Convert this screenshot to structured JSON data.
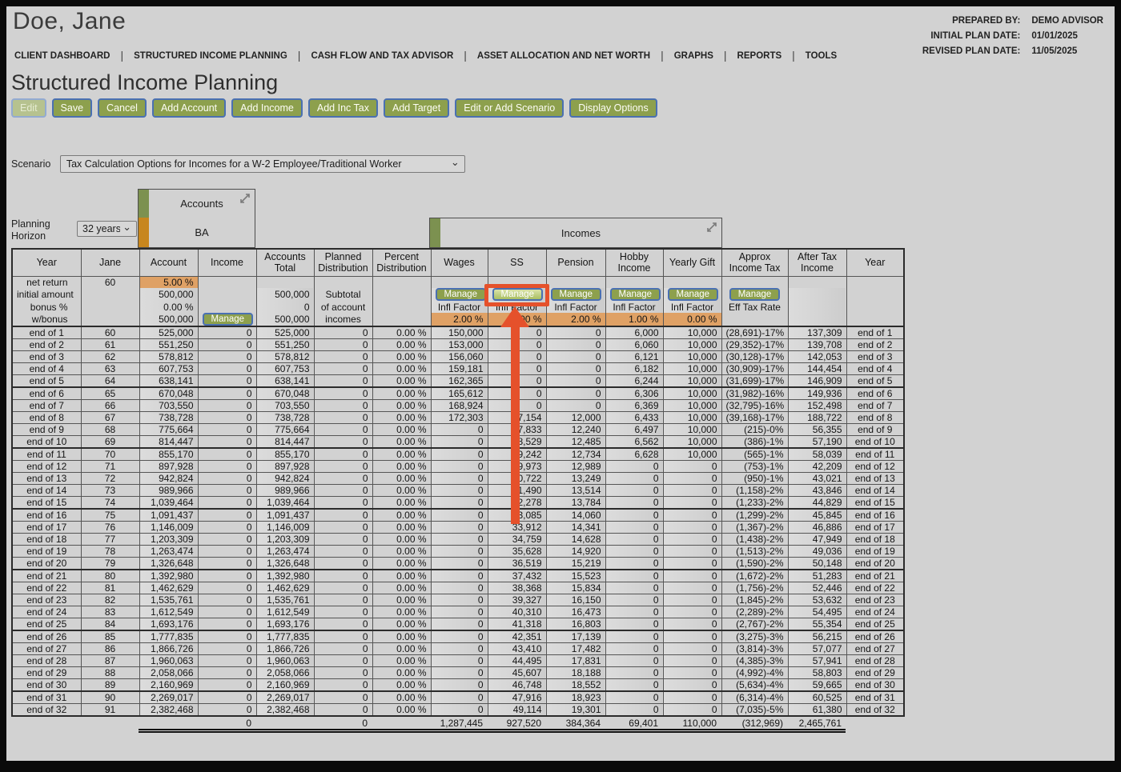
{
  "header": {
    "client_name": "Doe, Jane",
    "prepared_by_label": "PREPARED BY:",
    "prepared_by": "DEMO ADVISOR",
    "initial_plan_date_label": "INITIAL PLAN DATE:",
    "initial_plan_date": "01/01/2025",
    "revised_plan_date_label": "REVISED PLAN DATE:",
    "revised_plan_date": "11/05/2025",
    "nav": [
      "CLIENT DASHBOARD",
      "STRUCTURED INCOME PLANNING",
      "CASH FLOW AND TAX ADVISOR",
      "ASSET ALLOCATION AND NET WORTH",
      "GRAPHS",
      "REPORTS",
      "TOOLS"
    ]
  },
  "page_title": "Structured Income Planning",
  "toolbar": {
    "buttons": [
      "Edit",
      "Save",
      "Cancel",
      "Add Account",
      "Add Income",
      "Add Inc Tax",
      "Add Target",
      "Edit or Add Scenario",
      "Display Options"
    ]
  },
  "scenario": {
    "label": "Scenario",
    "selected": "Tax Calculation Options for Incomes for a W-2 Employee/Traditional Worker"
  },
  "planning_horizon": {
    "label": "Planning Horizon",
    "selected": "32 years"
  },
  "groups": {
    "accounts_label": "Accounts",
    "account_name": "BA",
    "incomes_label": "Incomes",
    "collapse_icon": "collapse-diagonal-arrows"
  },
  "table": {
    "columns": [
      "Year",
      "Jane",
      "Account",
      "Income",
      "Accounts Total",
      "Planned Distribution",
      "Percent Distribution",
      "Wages",
      "SS",
      "Pension",
      "Hobby Income",
      "Yearly Gift",
      "Approx Income Tax",
      "After Tax Income",
      "Year"
    ],
    "setup": {
      "manage_label": "Manage",
      "infl_factor_label": "Infl Factor",
      "eff_tax_rate_label": "Eff Tax Rate",
      "rows": [
        {
          "label": "net return",
          "jane": "60",
          "account": "5.00 %"
        },
        {
          "label": "initial amount",
          "account": "500,000",
          "accounts_total": "500,000",
          "planned": "Subtotal"
        },
        {
          "label": "bonus %",
          "account": "0.00 %",
          "accounts_total": "0",
          "planned": "of account"
        },
        {
          "label": "w/bonus",
          "account": "500,000",
          "accounts_total": "500,000",
          "planned": "incomes",
          "factors": {
            "wages": "2.00 %",
            "ss": "2.00 %",
            "pension": "2.00 %",
            "hobby": "1.00 %",
            "gift": "0.00 %"
          }
        }
      ]
    },
    "rows": [
      [
        "end of 1",
        "60",
        "525,000",
        "0",
        "525,000",
        "0",
        "0.00 %",
        "150,000",
        "0",
        "0",
        "6,000",
        "10,000",
        "(28,691)-17%",
        "137,309",
        "end of 1"
      ],
      [
        "end of 2",
        "61",
        "551,250",
        "0",
        "551,250",
        "0",
        "0.00 %",
        "153,000",
        "0",
        "0",
        "6,060",
        "10,000",
        "(29,352)-17%",
        "139,708",
        "end of 2"
      ],
      [
        "end of 3",
        "62",
        "578,812",
        "0",
        "578,812",
        "0",
        "0.00 %",
        "156,060",
        "0",
        "0",
        "6,121",
        "10,000",
        "(30,128)-17%",
        "142,053",
        "end of 3"
      ],
      [
        "end of 4",
        "63",
        "607,753",
        "0",
        "607,753",
        "0",
        "0.00 %",
        "159,181",
        "0",
        "0",
        "6,182",
        "10,000",
        "(30,909)-17%",
        "144,454",
        "end of 4"
      ],
      [
        "end of 5",
        "64",
        "638,141",
        "0",
        "638,141",
        "0",
        "0.00 %",
        "162,365",
        "0",
        "0",
        "6,244",
        "10,000",
        "(31,699)-17%",
        "146,909",
        "end of 5"
      ],
      [
        "end of 6",
        "65",
        "670,048",
        "0",
        "670,048",
        "0",
        "0.00 %",
        "165,612",
        "0",
        "0",
        "6,306",
        "10,000",
        "(31,982)-16%",
        "149,936",
        "end of 6"
      ],
      [
        "end of 7",
        "66",
        "703,550",
        "0",
        "703,550",
        "0",
        "0.00 %",
        "168,924",
        "0",
        "0",
        "6,369",
        "10,000",
        "(32,795)-16%",
        "152,498",
        "end of 7"
      ],
      [
        "end of 8",
        "67",
        "738,728",
        "0",
        "738,728",
        "0",
        "0.00 %",
        "172,303",
        "27,154",
        "12,000",
        "6,433",
        "10,000",
        "(39,168)-17%",
        "188,722",
        "end of 8"
      ],
      [
        "end of 9",
        "68",
        "775,664",
        "0",
        "775,664",
        "0",
        "0.00 %",
        "0",
        "27,833",
        "12,240",
        "6,497",
        "10,000",
        "(215)-0%",
        "56,355",
        "end of 9"
      ],
      [
        "end of 10",
        "69",
        "814,447",
        "0",
        "814,447",
        "0",
        "0.00 %",
        "0",
        "28,529",
        "12,485",
        "6,562",
        "10,000",
        "(386)-1%",
        "57,190",
        "end of 10"
      ],
      [
        "end of 11",
        "70",
        "855,170",
        "0",
        "855,170",
        "0",
        "0.00 %",
        "0",
        "29,242",
        "12,734",
        "6,628",
        "10,000",
        "(565)-1%",
        "58,039",
        "end of 11"
      ],
      [
        "end of 12",
        "71",
        "897,928",
        "0",
        "897,928",
        "0",
        "0.00 %",
        "0",
        "29,973",
        "12,989",
        "0",
        "0",
        "(753)-1%",
        "42,209",
        "end of 12"
      ],
      [
        "end of 13",
        "72",
        "942,824",
        "0",
        "942,824",
        "0",
        "0.00 %",
        "0",
        "30,722",
        "13,249",
        "0",
        "0",
        "(950)-1%",
        "43,021",
        "end of 13"
      ],
      [
        "end of 14",
        "73",
        "989,966",
        "0",
        "989,966",
        "0",
        "0.00 %",
        "0",
        "31,490",
        "13,514",
        "0",
        "0",
        "(1,158)-2%",
        "43,846",
        "end of 14"
      ],
      [
        "end of 15",
        "74",
        "1,039,464",
        "0",
        "1,039,464",
        "0",
        "0.00 %",
        "0",
        "32,278",
        "13,784",
        "0",
        "0",
        "(1,233)-2%",
        "44,829",
        "end of 15"
      ],
      [
        "end of 16",
        "75",
        "1,091,437",
        "0",
        "1,091,437",
        "0",
        "0.00 %",
        "0",
        "33,085",
        "14,060",
        "0",
        "0",
        "(1,299)-2%",
        "45,845",
        "end of 16"
      ],
      [
        "end of 17",
        "76",
        "1,146,009",
        "0",
        "1,146,009",
        "0",
        "0.00 %",
        "0",
        "33,912",
        "14,341",
        "0",
        "0",
        "(1,367)-2%",
        "46,886",
        "end of 17"
      ],
      [
        "end of 18",
        "77",
        "1,203,309",
        "0",
        "1,203,309",
        "0",
        "0.00 %",
        "0",
        "34,759",
        "14,628",
        "0",
        "0",
        "(1,438)-2%",
        "47,949",
        "end of 18"
      ],
      [
        "end of 19",
        "78",
        "1,263,474",
        "0",
        "1,263,474",
        "0",
        "0.00 %",
        "0",
        "35,628",
        "14,920",
        "0",
        "0",
        "(1,513)-2%",
        "49,036",
        "end of 19"
      ],
      [
        "end of 20",
        "79",
        "1,326,648",
        "0",
        "1,326,648",
        "0",
        "0.00 %",
        "0",
        "36,519",
        "15,219",
        "0",
        "0",
        "(1,590)-2%",
        "50,148",
        "end of 20"
      ],
      [
        "end of 21",
        "80",
        "1,392,980",
        "0",
        "1,392,980",
        "0",
        "0.00 %",
        "0",
        "37,432",
        "15,523",
        "0",
        "0",
        "(1,672)-2%",
        "51,283",
        "end of 21"
      ],
      [
        "end of 22",
        "81",
        "1,462,629",
        "0",
        "1,462,629",
        "0",
        "0.00 %",
        "0",
        "38,368",
        "15,834",
        "0",
        "0",
        "(1,756)-2%",
        "52,446",
        "end of 22"
      ],
      [
        "end of 23",
        "82",
        "1,535,761",
        "0",
        "1,535,761",
        "0",
        "0.00 %",
        "0",
        "39,327",
        "16,150",
        "0",
        "0",
        "(1,845)-2%",
        "53,632",
        "end of 23"
      ],
      [
        "end of 24",
        "83",
        "1,612,549",
        "0",
        "1,612,549",
        "0",
        "0.00 %",
        "0",
        "40,310",
        "16,473",
        "0",
        "0",
        "(2,289)-2%",
        "54,495",
        "end of 24"
      ],
      [
        "end of 25",
        "84",
        "1,693,176",
        "0",
        "1,693,176",
        "0",
        "0.00 %",
        "0",
        "41,318",
        "16,803",
        "0",
        "0",
        "(2,767)-2%",
        "55,354",
        "end of 25"
      ],
      [
        "end of 26",
        "85",
        "1,777,835",
        "0",
        "1,777,835",
        "0",
        "0.00 %",
        "0",
        "42,351",
        "17,139",
        "0",
        "0",
        "(3,275)-3%",
        "56,215",
        "end of 26"
      ],
      [
        "end of 27",
        "86",
        "1,866,726",
        "0",
        "1,866,726",
        "0",
        "0.00 %",
        "0",
        "43,410",
        "17,482",
        "0",
        "0",
        "(3,814)-3%",
        "57,077",
        "end of 27"
      ],
      [
        "end of 28",
        "87",
        "1,960,063",
        "0",
        "1,960,063",
        "0",
        "0.00 %",
        "0",
        "44,495",
        "17,831",
        "0",
        "0",
        "(4,385)-3%",
        "57,941",
        "end of 28"
      ],
      [
        "end of 29",
        "88",
        "2,058,066",
        "0",
        "2,058,066",
        "0",
        "0.00 %",
        "0",
        "45,607",
        "18,188",
        "0",
        "0",
        "(4,992)-4%",
        "58,803",
        "end of 29"
      ],
      [
        "end of 30",
        "89",
        "2,160,969",
        "0",
        "2,160,969",
        "0",
        "0.00 %",
        "0",
        "46,748",
        "18,552",
        "0",
        "0",
        "(5,634)-4%",
        "59,665",
        "end of 30"
      ],
      [
        "end of 31",
        "90",
        "2,269,017",
        "0",
        "2,269,017",
        "0",
        "0.00 %",
        "0",
        "47,916",
        "18,923",
        "0",
        "0",
        "(6,314)-4%",
        "60,525",
        "end of 31"
      ],
      [
        "end of 32",
        "91",
        "2,382,468",
        "0",
        "2,382,468",
        "0",
        "0.00 %",
        "0",
        "49,114",
        "19,301",
        "0",
        "0",
        "(7,035)-5%",
        "61,380",
        "end of 32"
      ]
    ],
    "totals": [
      "",
      "",
      "",
      "0",
      "",
      "0",
      "",
      "1,287,445",
      "927,520",
      "384,364",
      "69,401",
      "110,000",
      "(312,969)",
      "2,465,761",
      ""
    ]
  },
  "annotation": {
    "type": "highlight-and-arrow",
    "target": "ss-manage-button",
    "color": "#e5512b"
  },
  "colors": {
    "page_bg": "#d2d2d2",
    "button_green": "#8da04d",
    "button_border_blue": "#4a70b2",
    "editable_orange": "#dfa165",
    "group_bar_green": "#7c9150",
    "group_bar_orange": "#c7861e",
    "annotation_orange": "#e5512b"
  }
}
